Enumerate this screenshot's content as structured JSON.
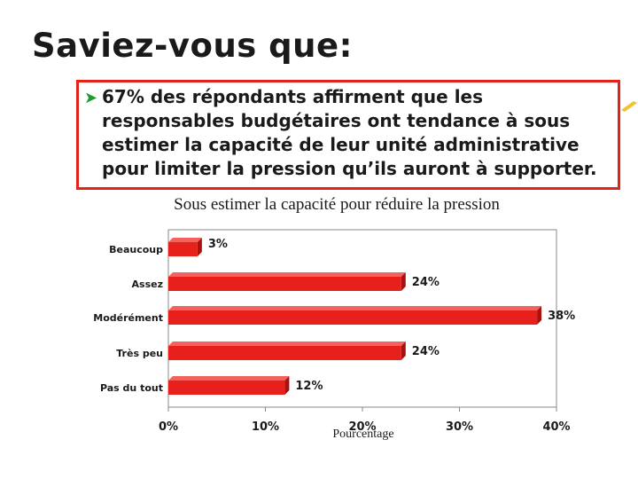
{
  "slide": {
    "title": "Saviez-vous que:",
    "bullet": "67% des répondants affirment que les responsables budgétaires ont tendance à sous estimer la capacité de leur unité administrative pour limiter la pression qu’ils auront à supporter.",
    "bullet_icon": "green-arrow-icon"
  },
  "colors": {
    "bar": "#e8201b",
    "bar_top": "#f3625d",
    "bar_side": "#a8120e",
    "callout_border": "#e32219"
  },
  "chart_data": {
    "type": "bar",
    "orientation": "horizontal",
    "title": "Sous estimer la capacité pour réduire la pression",
    "xlabel": "Pourcentage",
    "ylabel": "",
    "categories": [
      "Beaucoup",
      "Assez",
      "Modérément",
      "Très peu",
      "Pas du tout"
    ],
    "values": [
      3,
      24,
      38,
      24,
      12
    ],
    "value_labels": [
      "3%",
      "24%",
      "38%",
      "24%",
      "12%"
    ],
    "xlim": [
      0,
      40
    ],
    "x_ticks": [
      "0%",
      "10%",
      "20%",
      "30%",
      "40%"
    ],
    "grid": false,
    "legend": "none"
  }
}
